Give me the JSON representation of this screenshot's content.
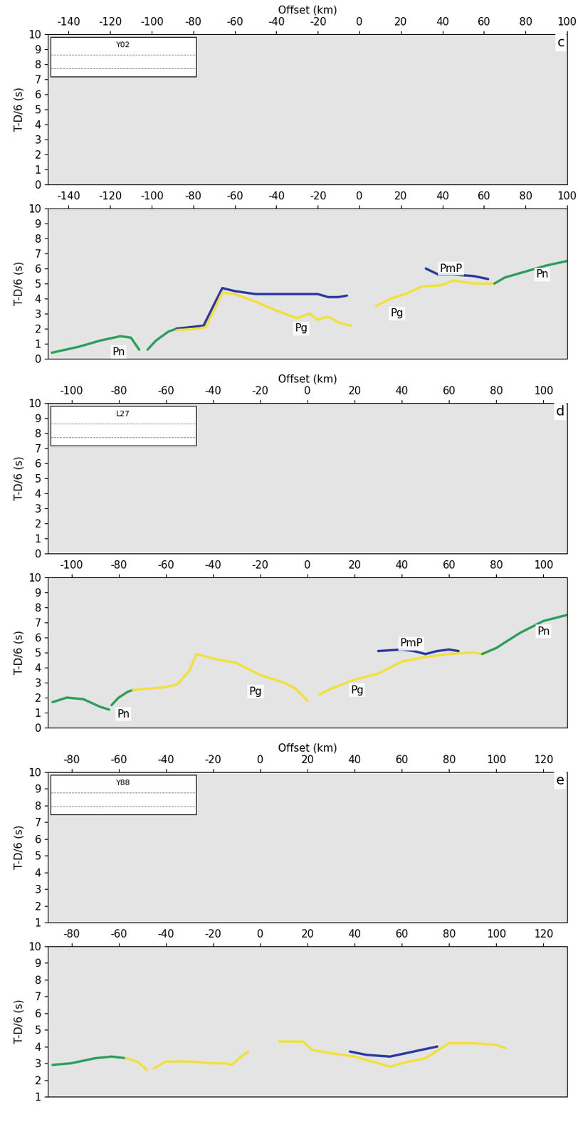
{
  "chart_data": [
    {
      "type": "line",
      "panel_label": "c",
      "station": "Y02",
      "xlabel": "Offset (km)",
      "ylabel": "T-D/6 (s)",
      "xlim": [
        -150,
        100
      ],
      "xticks": [
        -140,
        -120,
        -100,
        -80,
        -60,
        -40,
        -20,
        0,
        20,
        40,
        60,
        80,
        100
      ],
      "ylim": [
        0,
        10
      ],
      "yticks": [
        0,
        1,
        2,
        3,
        4,
        5,
        6,
        7,
        8,
        9,
        10
      ],
      "series": [],
      "annotations": []
    },
    {
      "type": "line",
      "ylabel": "T-D/6 (s)",
      "xlim": [
        -150,
        100
      ],
      "xticks": [
        -140,
        -120,
        -100,
        -80,
        -60,
        -40,
        -20,
        0,
        20,
        40,
        60,
        80,
        100
      ],
      "ylim": [
        0,
        10
      ],
      "yticks": [
        0,
        1,
        2,
        3,
        4,
        5,
        6,
        7,
        8,
        9,
        10
      ],
      "series": [
        {
          "color": "#2e9e5b",
          "x": [
            -148,
            -135,
            -125,
            -115,
            -110,
            -106
          ],
          "values": [
            0.4,
            0.8,
            1.2,
            1.5,
            1.4,
            0.6
          ]
        },
        {
          "color": "#2e9e5b",
          "x": [
            -102,
            -98,
            -92,
            -88
          ],
          "values": [
            0.6,
            1.2,
            1.8,
            2.0
          ]
        },
        {
          "color": "#2b3a9e",
          "x": [
            -88,
            -75,
            -70,
            -66,
            -60,
            -50,
            -40,
            -30,
            -20,
            -15,
            -10,
            -6
          ],
          "values": [
            2.0,
            2.2,
            3.6,
            4.7,
            4.5,
            4.3,
            4.3,
            4.3,
            4.3,
            4.1,
            4.1,
            4.2
          ]
        },
        {
          "color": "#f2e03a",
          "x": [
            -88,
            -78,
            -74,
            -70,
            -66,
            -60,
            -50,
            -40,
            -30,
            -24,
            -20,
            -15,
            -10,
            -4
          ],
          "values": [
            1.9,
            2.0,
            2.1,
            3.2,
            4.4,
            4.3,
            3.8,
            3.2,
            2.7,
            3.0,
            2.6,
            2.8,
            2.4,
            2.2
          ]
        },
        {
          "color": "#f2e03a",
          "x": [
            8,
            15,
            22,
            30,
            40,
            45,
            55,
            65
          ],
          "values": [
            3.5,
            4.0,
            4.3,
            4.8,
            4.9,
            5.2,
            5.0,
            5.0
          ]
        },
        {
          "color": "#2b3a9e",
          "x": [
            32,
            38,
            45,
            55,
            62
          ],
          "values": [
            6.0,
            5.6,
            5.6,
            5.5,
            5.3
          ]
        },
        {
          "color": "#2e9e5b",
          "x": [
            65,
            70,
            80,
            90,
            100
          ],
          "values": [
            5.0,
            5.4,
            5.8,
            6.2,
            6.5
          ]
        }
      ],
      "annotations": [
        {
          "text": "Pn",
          "x": -116,
          "y": 0.45
        },
        {
          "text": "Pg",
          "x": -28,
          "y": 2.0
        },
        {
          "text": "Pg",
          "x": 18,
          "y": 3.0
        },
        {
          "text": "PmP",
          "x": 44,
          "y": 6.0
        },
        {
          "text": "Pn",
          "x": 88,
          "y": 5.6
        }
      ]
    },
    {
      "type": "line",
      "panel_label": "d",
      "station": "L27",
      "xlabel": "Offset (km)",
      "ylabel": "T-D/6 (s)",
      "xlim": [
        -110,
        110
      ],
      "xticks": [
        -100,
        -80,
        -60,
        -40,
        -20,
        0,
        20,
        40,
        60,
        80,
        100
      ],
      "ylim": [
        0,
        10
      ],
      "yticks": [
        0,
        1,
        2,
        3,
        4,
        5,
        6,
        7,
        8,
        9,
        10
      ],
      "series": [],
      "annotations": []
    },
    {
      "type": "line",
      "ylabel": "T-D/6 (s)",
      "xlim": [
        -110,
        110
      ],
      "xticks": [
        -100,
        -80,
        -60,
        -40,
        -20,
        0,
        20,
        40,
        60,
        80,
        100
      ],
      "ylim": [
        0,
        10
      ],
      "yticks": [
        0,
        1,
        2,
        3,
        4,
        5,
        6,
        7,
        8,
        9,
        10
      ],
      "series": [
        {
          "color": "#2e9e5b",
          "x": [
            -108,
            -102,
            -95,
            -88,
            -84
          ],
          "values": [
            1.7,
            2.0,
            1.9,
            1.4,
            1.2
          ]
        },
        {
          "color": "#2e9e5b",
          "x": [
            -83,
            -80,
            -76,
            -74
          ],
          "values": [
            1.5,
            2.0,
            2.4,
            2.5
          ]
        },
        {
          "color": "#f2e03a",
          "x": [
            -74,
            -60,
            -55,
            -50,
            -47,
            -40,
            -30,
            -20,
            -10,
            -5,
            0
          ],
          "values": [
            2.5,
            2.7,
            2.9,
            3.8,
            4.9,
            4.6,
            4.3,
            3.5,
            3.0,
            2.6,
            1.8
          ]
        },
        {
          "color": "#f2e03a",
          "x": [
            5,
            10,
            20,
            30,
            40,
            50,
            60,
            70,
            75
          ],
          "values": [
            2.2,
            2.6,
            3.2,
            3.6,
            4.4,
            4.7,
            4.9,
            5.0,
            4.9
          ]
        },
        {
          "color": "#2b3a9e",
          "x": [
            30,
            40,
            45,
            50,
            55,
            60,
            64
          ],
          "values": [
            5.1,
            5.2,
            5.1,
            4.9,
            5.1,
            5.2,
            5.1
          ]
        },
        {
          "color": "#2e9e5b",
          "x": [
            74,
            80,
            90,
            100,
            110
          ],
          "values": [
            4.9,
            5.3,
            6.3,
            7.1,
            7.5
          ]
        }
      ],
      "annotations": [
        {
          "text": "Pn",
          "x": -78,
          "y": 0.9
        },
        {
          "text": "Pg",
          "x": -22,
          "y": 2.4
        },
        {
          "text": "Pg",
          "x": 21,
          "y": 2.5
        },
        {
          "text": "PmP",
          "x": 44,
          "y": 5.6
        },
        {
          "text": "Pn",
          "x": 100,
          "y": 6.4
        }
      ]
    },
    {
      "type": "line",
      "panel_label": "e",
      "station": "Y88",
      "xlabel": "Offset (km)",
      "ylabel": "T-D/6 (s)",
      "xlim": [
        -90,
        130
      ],
      "xticks": [
        -80,
        -60,
        -40,
        -20,
        0,
        20,
        40,
        60,
        80,
        100,
        120
      ],
      "ylim": [
        1,
        10
      ],
      "yticks": [
        1,
        2,
        3,
        4,
        5,
        6,
        7,
        8,
        9,
        10
      ],
      "series": [],
      "annotations": []
    },
    {
      "type": "line",
      "ylabel": "T-D/6 (s)",
      "xlim": [
        -90,
        130
      ],
      "xticks": [
        -80,
        -60,
        -40,
        -20,
        0,
        20,
        40,
        60,
        80,
        100,
        120
      ],
      "ylim": [
        1,
        10
      ],
      "yticks": [
        1,
        2,
        3,
        4,
        5,
        6,
        7,
        8,
        9,
        10
      ],
      "series": [
        {
          "color": "#2e9e5b",
          "x": [
            -88,
            -80,
            -70,
            -63,
            -57
          ],
          "values": [
            2.9,
            3.0,
            3.3,
            3.4,
            3.3
          ]
        },
        {
          "color": "#f2e03a",
          "x": [
            -57,
            -52,
            -48
          ],
          "values": [
            3.3,
            3.1,
            2.6
          ]
        },
        {
          "color": "#f2e03a",
          "x": [
            -45,
            -40,
            -30,
            -20,
            -15,
            -12,
            -8,
            -5
          ],
          "values": [
            2.7,
            3.1,
            3.1,
            3.0,
            3.0,
            2.9,
            3.4,
            3.7
          ]
        },
        {
          "color": "#f2e03a",
          "x": [
            8,
            18,
            22,
            30,
            40,
            50,
            55,
            60,
            70,
            80,
            90,
            100,
            104
          ],
          "values": [
            4.3,
            4.3,
            3.8,
            3.6,
            3.4,
            3.0,
            2.8,
            3.0,
            3.3,
            4.2,
            4.2,
            4.1,
            3.9
          ]
        },
        {
          "color": "#2b3a9e",
          "x": [
            38,
            45,
            55,
            65,
            75
          ],
          "values": [
            3.7,
            3.5,
            3.4,
            3.7,
            4.0
          ]
        }
      ],
      "annotations": []
    }
  ]
}
